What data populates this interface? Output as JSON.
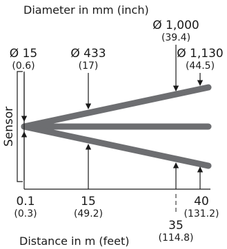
{
  "title_top": "Diameter in mm (inch)",
  "title_bottom": "Distance in m (feet)",
  "sensor_label": "Sensor",
  "diameters": [
    {
      "main": "Ø 15",
      "sub": "(0.6)"
    },
    {
      "main": "Ø 433",
      "sub": "(17)"
    },
    {
      "main": "Ø 1,000",
      "sub": "(39.4)"
    },
    {
      "main": "Ø 1,130",
      "sub": "(44.5)"
    }
  ],
  "distances": [
    {
      "main": "0.1",
      "sub": "(0.3)"
    },
    {
      "main": "15",
      "sub": "(49.2)"
    },
    {
      "main": "35",
      "sub": "(114.8)"
    },
    {
      "main": "40",
      "sub": "(131.2)"
    }
  ],
  "colors": {
    "beam": "#6d6e71",
    "ink": "#1a1a1a"
  }
}
